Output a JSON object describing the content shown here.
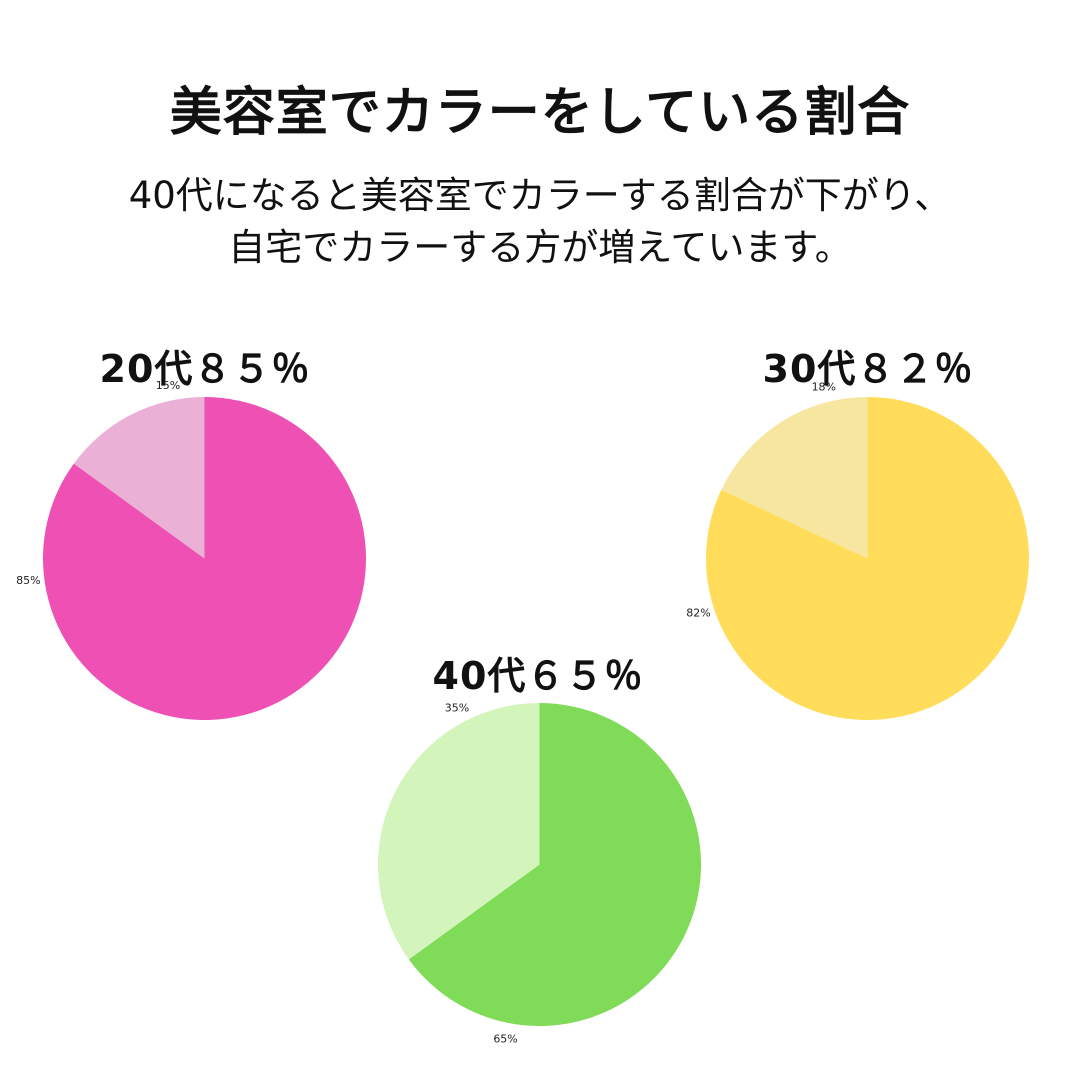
{
  "page": {
    "title": "美容室でカラーをしている割合",
    "subtitle_lines": [
      "40代になると美容室でカラーする割合が下がり、",
      "自宅でカラーする方が増えています。"
    ]
  },
  "chart_data": [
    {
      "type": "pie",
      "title": "20代８５％",
      "slices": [
        {
          "value": 85,
          "label": "85%",
          "color": "#ee50b3"
        },
        {
          "value": 15,
          "label": "15%",
          "color": "#ebb0d5"
        }
      ]
    },
    {
      "type": "pie",
      "title": "30代８２％",
      "slices": [
        {
          "value": 82,
          "label": "82%",
          "color": "#ffdd5a"
        },
        {
          "value": 18,
          "label": "18%",
          "color": "#f6e6a0"
        }
      ]
    },
    {
      "type": "pie",
      "title": "40代６５％",
      "slices": [
        {
          "value": 65,
          "label": "65%",
          "color": "#80db58"
        },
        {
          "value": 35,
          "label": "35%",
          "color": "#d3f4bb"
        }
      ]
    }
  ]
}
